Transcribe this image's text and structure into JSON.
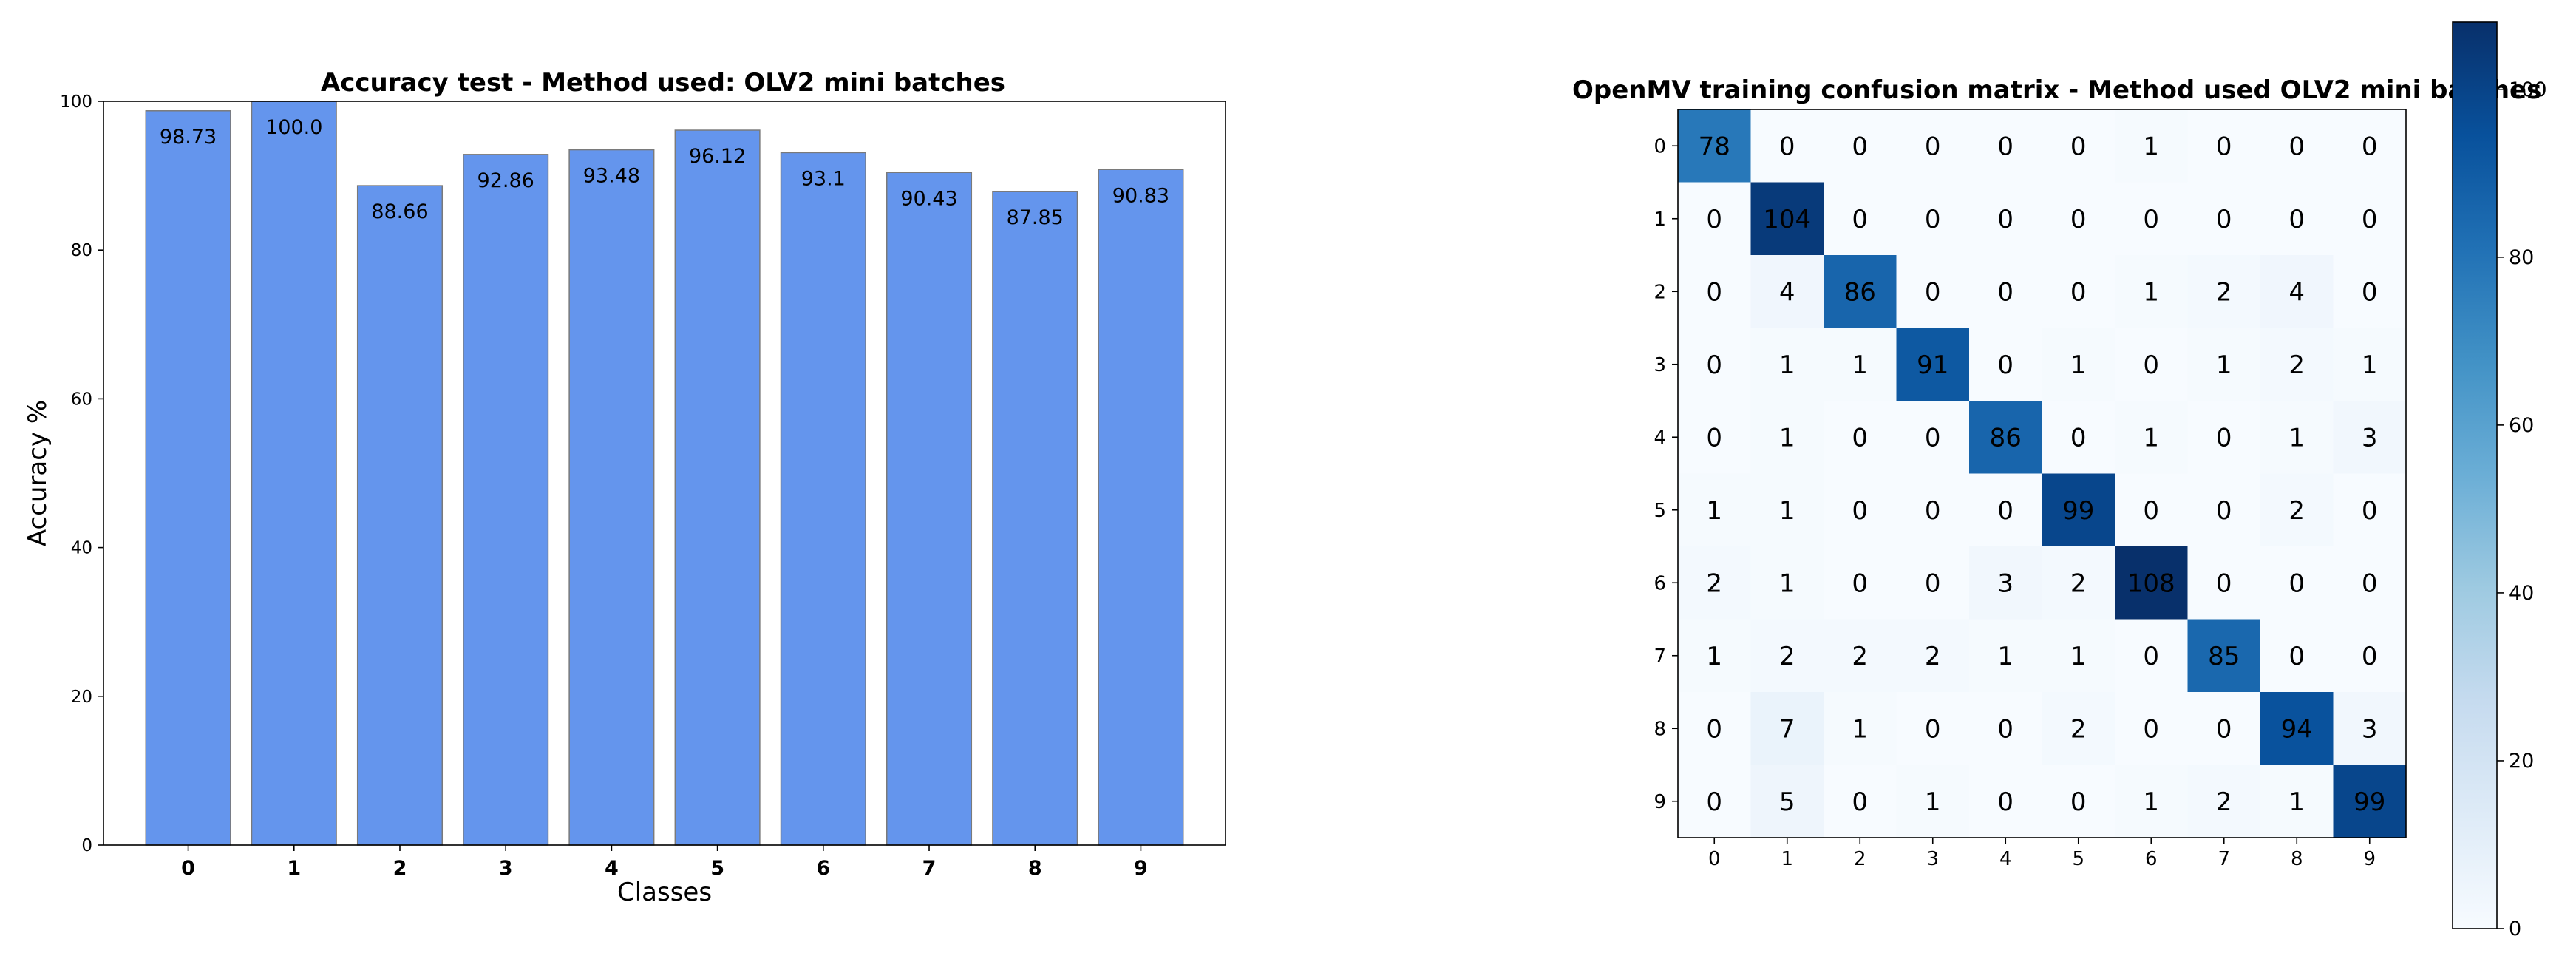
{
  "colors": {
    "bar_fill": "#6495ED",
    "bar_edge": "#7a7a7a",
    "cmap_low": "#f7fbff",
    "cmap_high": "#08306b",
    "text_on_light": "#000000",
    "text_on_dark": "#ffffff"
  },
  "chart_data": [
    {
      "type": "bar",
      "title": "Accuracy test - Method used: OLV2 mini batches",
      "xlabel": "Classes",
      "ylabel": "Accuracy %",
      "categories": [
        "0",
        "1",
        "2",
        "3",
        "4",
        "5",
        "6",
        "7",
        "8",
        "9"
      ],
      "values": [
        98.73,
        100.0,
        88.66,
        92.86,
        93.48,
        96.12,
        93.1,
        90.43,
        87.85,
        90.83
      ],
      "value_labels": [
        "98.73",
        "100.0",
        "88.66",
        "92.86",
        "93.48",
        "96.12",
        "93.1",
        "90.43",
        "87.85",
        "90.83"
      ],
      "ylim": [
        0,
        100
      ],
      "yticks": [
        0,
        20,
        40,
        60,
        80,
        100
      ],
      "grid": false,
      "legend": "none"
    },
    {
      "type": "heatmap",
      "title": "OpenMV training confusion matrix - Method used OLV2 mini batches",
      "x_labels": [
        "0",
        "1",
        "2",
        "3",
        "4",
        "5",
        "6",
        "7",
        "8",
        "9"
      ],
      "y_labels": [
        "0",
        "1",
        "2",
        "3",
        "4",
        "5",
        "6",
        "7",
        "8",
        "9"
      ],
      "matrix": [
        [
          78,
          0,
          0,
          0,
          0,
          0,
          1,
          0,
          0,
          0
        ],
        [
          0,
          104,
          0,
          0,
          0,
          0,
          0,
          0,
          0,
          0
        ],
        [
          0,
          4,
          86,
          0,
          0,
          0,
          1,
          2,
          4,
          0
        ],
        [
          0,
          1,
          1,
          91,
          0,
          1,
          0,
          1,
          2,
          1
        ],
        [
          0,
          1,
          0,
          0,
          86,
          0,
          1,
          0,
          1,
          3
        ],
        [
          1,
          1,
          0,
          0,
          0,
          99,
          0,
          0,
          2,
          0
        ],
        [
          2,
          1,
          0,
          0,
          3,
          2,
          108,
          0,
          0,
          0
        ],
        [
          1,
          2,
          2,
          2,
          1,
          1,
          0,
          85,
          0,
          0
        ],
        [
          0,
          7,
          1,
          0,
          0,
          2,
          0,
          0,
          94,
          3
        ],
        [
          0,
          5,
          0,
          1,
          0,
          0,
          1,
          2,
          1,
          99
        ]
      ],
      "colorbar": {
        "range": [
          0,
          108
        ],
        "ticks": [
          0,
          20,
          40,
          60,
          80,
          100
        ],
        "colormap": "Blues"
      }
    }
  ]
}
